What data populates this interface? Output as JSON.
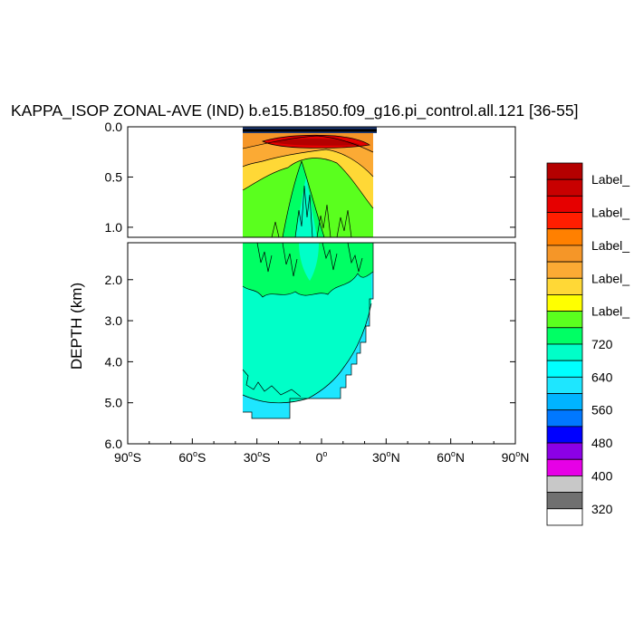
{
  "chart_data": {
    "type": "heatmap",
    "title": "KAPPA_ISOP ZONAL-AVE (IND) b.e15.B1850.f09_g16.pi_control.all.121 [36-55]",
    "ylabel": "DEPTH (km)",
    "xlim": [
      -90,
      90
    ],
    "upper_panel": {
      "ylim": [
        0.0,
        1.1
      ],
      "y_ticks": [
        "0.0",
        "0.5",
        "1.0"
      ],
      "y_values": [
        0.0,
        0.5,
        1.0
      ]
    },
    "lower_panel": {
      "ylim": [
        1.1,
        6.0
      ],
      "y_ticks": [
        "2.0",
        "3.0",
        "4.0",
        "5.0",
        "6.0"
      ],
      "y_values": [
        2.0,
        3.0,
        4.0,
        5.0,
        6.0
      ]
    },
    "x_ticks": [
      {
        "value": -90,
        "deg": "90",
        "hemi": "S"
      },
      {
        "value": -60,
        "deg": "60",
        "hemi": "S"
      },
      {
        "value": -30,
        "deg": "30",
        "hemi": "S"
      },
      {
        "value": 0,
        "deg": "0",
        "hemi": ""
      },
      {
        "value": 30,
        "deg": "30",
        "hemi": "N"
      },
      {
        "value": 60,
        "deg": "60",
        "hemi": "N"
      },
      {
        "value": 90,
        "deg": "90",
        "hemi": "N"
      }
    ],
    "data_extent": {
      "lat_min": -35,
      "lat_max": 25,
      "max_depth_km": 5.4
    },
    "colorbar": {
      "colors": [
        "#b40000",
        "#c80000",
        "#e60000",
        "#ff1e00",
        "#ff8000",
        "#f59628",
        "#fbaa34",
        "#ffd836",
        "#ffff00",
        "#5aff1e",
        "#00ff64",
        "#00ffc8",
        "#00ffff",
        "#1ee6ff",
        "#00b4ff",
        "#0078ff",
        "#0000ff",
        "#8c00e6",
        "#e600e6",
        "#c8c8c8",
        "#707070",
        "#ffffff"
      ],
      "labels": [
        {
          "text": "Label_",
          "after_box": 1
        },
        {
          "text": "Label_",
          "after_box": 3
        },
        {
          "text": "Label_",
          "after_box": 5
        },
        {
          "text": "Label_",
          "after_box": 7
        },
        {
          "text": "Label_",
          "after_box": 9
        },
        {
          "text": "720",
          "after_box": 11
        },
        {
          "text": "640",
          "after_box": 13
        },
        {
          "text": "560",
          "after_box": 15
        },
        {
          "text": "480",
          "after_box": 17
        },
        {
          "text": "400",
          "after_box": 19
        },
        {
          "text": "320",
          "after_box": 21
        }
      ]
    }
  }
}
